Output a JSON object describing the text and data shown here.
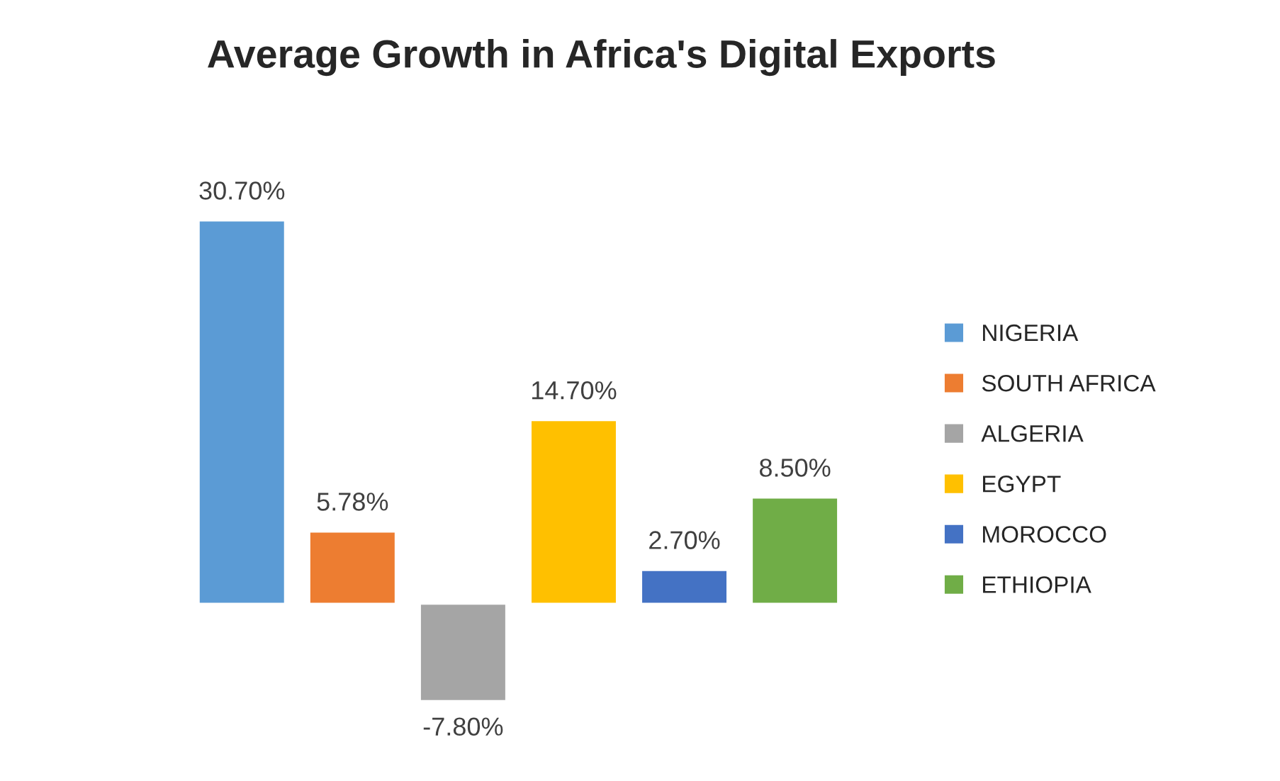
{
  "chart_data": {
    "type": "bar",
    "title": "Average Growth in Africa's Digital Exports",
    "categories": [
      null
    ],
    "series": [
      {
        "name": "NIGERIA",
        "color": "#5b9bd5",
        "values": [
          30.7
        ],
        "value_labels": [
          "30.70%"
        ]
      },
      {
        "name": "SOUTH AFRICA",
        "color": "#ed7d31",
        "values": [
          5.78
        ],
        "value_labels": [
          "5.78%"
        ]
      },
      {
        "name": "ALGERIA",
        "color": "#a5a5a5",
        "values": [
          -7.8
        ],
        "value_labels": [
          "-7.80%"
        ]
      },
      {
        "name": "EGYPT",
        "color": "#ffc000",
        "values": [
          14.7
        ],
        "value_labels": [
          "14.70%"
        ]
      },
      {
        "name": "MOROCCO",
        "color": "#4472c4",
        "values": [
          2.7
        ],
        "value_labels": [
          "2.70%"
        ]
      },
      {
        "name": "ETHIOPIA",
        "color": "#70ad47",
        "values": [
          8.5
        ],
        "value_labels": [
          "8.50%"
        ]
      }
    ],
    "legend": "right",
    "grid": false
  }
}
